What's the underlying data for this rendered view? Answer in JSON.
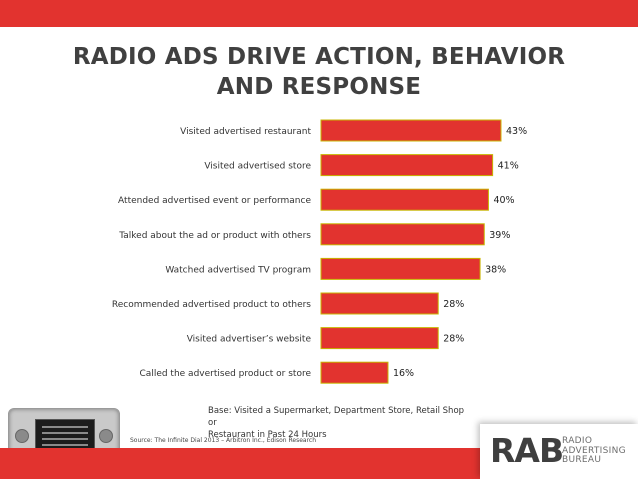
{
  "title": {
    "line1": "RADIO ADS DRIVE ACTION, BEHAVIOR",
    "line2": "AND RESPONSE"
  },
  "chart_data": {
    "type": "bar",
    "orientation": "horizontal",
    "title": "RADIO ADS DRIVE ACTION, BEHAVIOR AND RESPONSE",
    "categories": [
      "Visited advertised restaurant",
      "Visited advertised store",
      "Attended advertised event or performance",
      "Talked about the ad or product with others",
      "Watched advertised TV program",
      "Recommended advertised product to others",
      "Visited advertiser’s website",
      "Called the advertised product or store"
    ],
    "values": [
      43,
      41,
      40,
      39,
      38,
      28,
      28,
      16
    ],
    "value_labels": [
      "43%",
      "41%",
      "40%",
      "39%",
      "38%",
      "28%",
      "28%",
      "16%"
    ],
    "unit": "%",
    "xlim": [
      0,
      43
    ],
    "grid": false,
    "legend": "none",
    "colors": {
      "bar_fill": "#e2332f",
      "bar_border": "#c8b400"
    }
  },
  "footnote": {
    "base_line1": "Base: Visited a Supermarket, Department Store, Retail Shop or",
    "base_line2": "Restaurant in Past 24 Hours",
    "source": "Source: The Infinite Dial 2013 – Arbitron Inc., Edison Research"
  },
  "logo": {
    "abbr": "RAB",
    "line1": "RADIO",
    "line2": "ADVERTISING",
    "line3": "BUREAU"
  },
  "colors": {
    "band": "#e2332f",
    "title_text": "#404040"
  },
  "icons": {
    "device": "car-radio-dashboard-icon"
  }
}
